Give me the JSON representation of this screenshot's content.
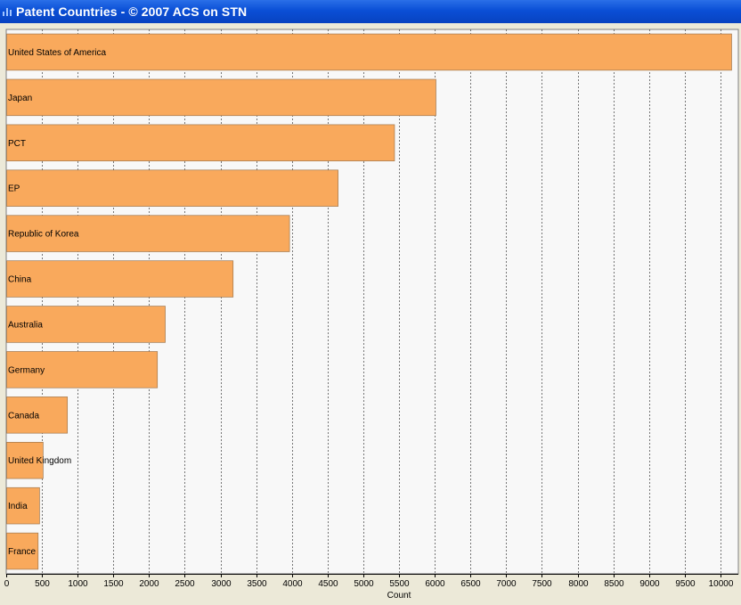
{
  "window": {
    "title": "Patent Countries - © 2007 ACS on STN"
  },
  "colors": {
    "bar_fill": "#f9a95c",
    "bar_stroke": "#a07850",
    "plot_bg": "#f8f8f8",
    "grid": "#555555",
    "titlebar": "#0a4fd6"
  },
  "chart_data": {
    "type": "bar",
    "orientation": "horizontal",
    "categories": [
      "United States of America",
      "Japan",
      "PCT",
      "EP",
      "Republic of Korea",
      "China",
      "Australia",
      "Germany",
      "Canada",
      "United Kingdom",
      "India",
      "France"
    ],
    "values": [
      10150,
      6010,
      5430,
      4640,
      3960,
      3170,
      2220,
      2110,
      850,
      510,
      460,
      440
    ],
    "xlabel": "Count",
    "ylabel": "",
    "xlim": [
      0,
      10250
    ],
    "xticks": [
      0,
      500,
      1000,
      1500,
      2000,
      2500,
      3000,
      3500,
      4000,
      4500,
      5000,
      5500,
      6000,
      6500,
      7000,
      7500,
      8000,
      8500,
      9000,
      9500,
      10000
    ],
    "grid": "vertical dashed",
    "legend": "none"
  }
}
